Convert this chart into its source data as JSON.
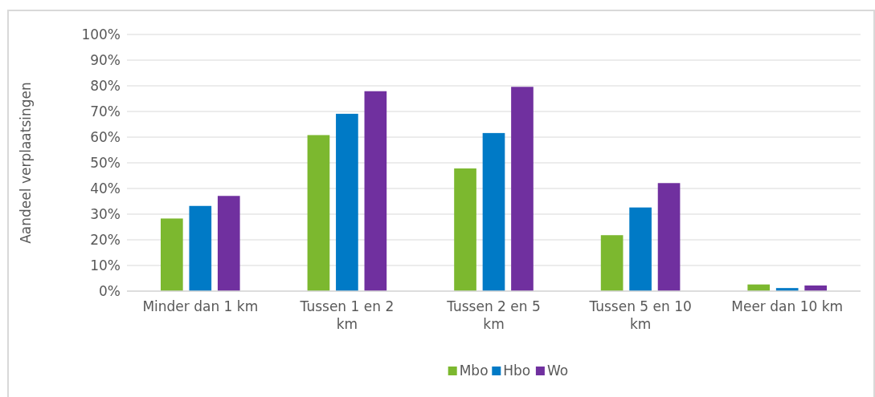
{
  "chart_data": {
    "type": "bar",
    "ylabel": "Aandeel verplaatsingen",
    "categories": [
      "Minder dan 1 km",
      "Tussen 1 en 2 km",
      "Tussen 2 en 5 km",
      "Tussen 5 en 10 km",
      "Meer dan 10 km"
    ],
    "series": [
      {
        "name": "Mbo",
        "color": "#7cb82f",
        "values": [
          28.3,
          60.8,
          47.8,
          21.8,
          2.6
        ]
      },
      {
        "name": "Hbo",
        "color": "#007ac6",
        "values": [
          33.2,
          69.1,
          61.6,
          32.6,
          1.2
        ]
      },
      {
        "name": "Wo",
        "color": "#70309f",
        "values": [
          37.1,
          77.9,
          79.6,
          42.1,
          2.2
        ]
      }
    ],
    "ylim": [
      0,
      100
    ],
    "yticks": [
      {
        "value": 0,
        "label": "0%"
      },
      {
        "value": 10,
        "label": "10%"
      },
      {
        "value": 20,
        "label": "20%"
      },
      {
        "value": 30,
        "label": "30%"
      },
      {
        "value": 40,
        "label": "40%"
      },
      {
        "value": 50,
        "label": "50%"
      },
      {
        "value": 60,
        "label": "60%"
      },
      {
        "value": 70,
        "label": "70%"
      },
      {
        "value": 80,
        "label": "80%"
      },
      {
        "value": 90,
        "label": "90%"
      },
      {
        "value": 100,
        "label": "100%"
      }
    ],
    "grid": "y",
    "legend": "bottom"
  }
}
